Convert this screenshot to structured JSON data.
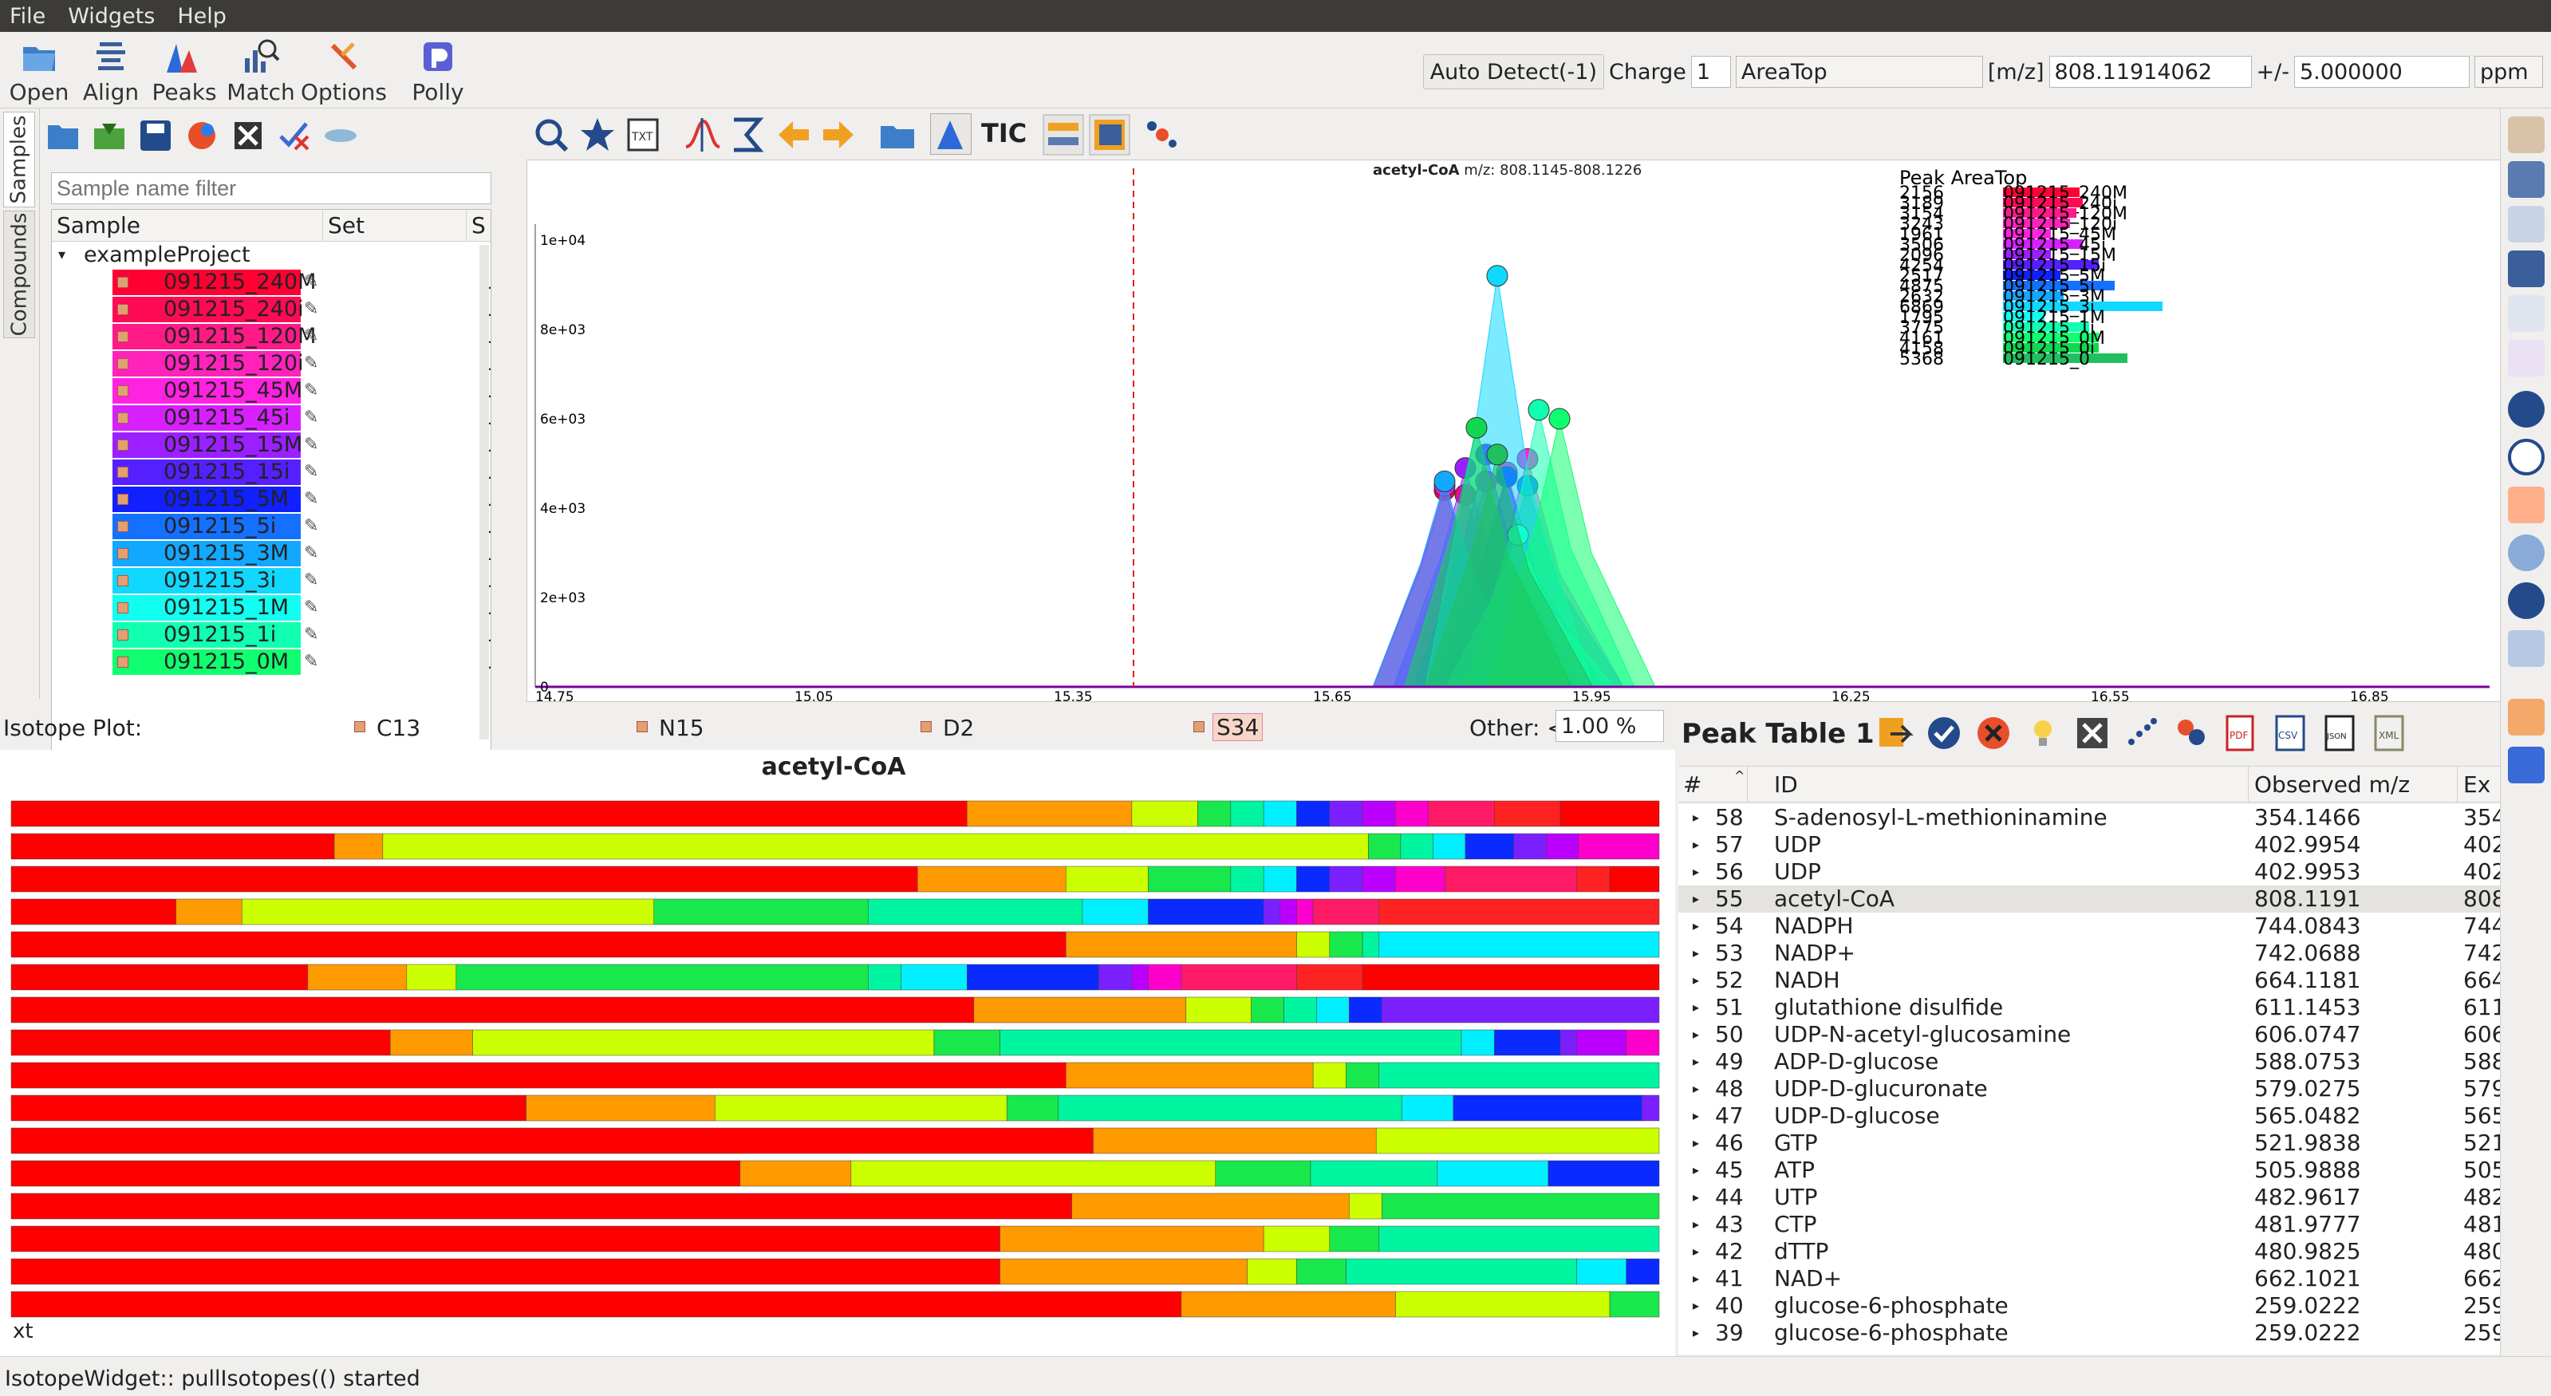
{
  "menu": [
    "File",
    "Widgets",
    "Help"
  ],
  "toolbar": {
    "buttons": [
      {
        "label": "Open",
        "icon": "folder-open-icon"
      },
      {
        "label": "Align",
        "icon": "align-icon"
      },
      {
        "label": "Peaks",
        "icon": "peaks-icon"
      },
      {
        "label": "Match",
        "icon": "match-icon"
      },
      {
        "label": "Options",
        "icon": "options-icon"
      },
      {
        "label": "Polly",
        "icon": "polly-icon"
      }
    ],
    "auto_detect": "Auto Detect(-1)",
    "charge_label": "Charge",
    "charge_value": "1",
    "quant_type": "AreaTop",
    "mz_label": "[m/z]",
    "mz_value": "808.11914062",
    "tol_label": "+/-",
    "tol_value": "5.000000",
    "tol_unit": "ppm"
  },
  "left_tabs": [
    "Samples",
    "Compounds"
  ],
  "samples": {
    "filter_placeholder": "Sample name filter",
    "col_sample": "Sample",
    "col_set": "Set",
    "col_s": "S",
    "project": "exampleProject",
    "items": [
      {
        "name": "091215_240M",
        "color": "#ff0033",
        "value": "1."
      },
      {
        "name": "091215_240i",
        "color": "#ff0a55",
        "value": "1."
      },
      {
        "name": "091215_120M",
        "color": "#ff1a88",
        "value": "1."
      },
      {
        "name": "091215_120i",
        "color": "#ff22bb",
        "value": "1."
      },
      {
        "name": "091215_45M",
        "color": "#ff22e0",
        "value": "1."
      },
      {
        "name": "091215_45i",
        "color": "#d820ff",
        "value": "1."
      },
      {
        "name": "091215_15M",
        "color": "#9a20ff",
        "value": "1."
      },
      {
        "name": "091215_15i",
        "color": "#5520ff",
        "value": "1."
      },
      {
        "name": "091215_5M",
        "color": "#1020ff",
        "value": "1."
      },
      {
        "name": "091215_5i",
        "color": "#1470ff",
        "value": "1."
      },
      {
        "name": "091215_3M",
        "color": "#12a8ff",
        "value": "1."
      },
      {
        "name": "091215_3i",
        "color": "#10d8ff",
        "value": "1."
      },
      {
        "name": "091215_1M",
        "color": "#10fff0",
        "value": "1."
      },
      {
        "name": "091215_1i",
        "color": "#10ffb0",
        "value": "1."
      },
      {
        "name": "091215_0M",
        "color": "#10ff70",
        "value": "1."
      }
    ]
  },
  "eic": {
    "tic_label": "TIC",
    "title_compound": "acetyl-CoA",
    "title_range": "m/z: 808.1145-808.1226",
    "legend_title": "Peak AreaTop",
    "y_ticks": [
      "1e+04",
      "8e+03",
      "6e+03",
      "4e+03",
      "2e+03",
      "0"
    ],
    "x_ticks": [
      "14.75",
      "15.05",
      "15.35",
      "15.65",
      "15.95",
      "16.25",
      "16.55",
      "16.85"
    ],
    "legend": [
      {
        "val": "2156",
        "name": "091215_240M",
        "color": "#ff0033",
        "bar": 0.48
      },
      {
        "val": "3189",
        "name": "091215_240i",
        "color": "#ff0a55",
        "bar": 0.5
      },
      {
        "val": "3154",
        "name": "091215_120M",
        "color": "#ff1a88",
        "bar": 0.46
      },
      {
        "val": "3243",
        "name": "091215_120i",
        "color": "#ff22bb",
        "bar": 0.42
      },
      {
        "val": "1961",
        "name": "091215_45M",
        "color": "#ff22e0",
        "bar": 0.3
      },
      {
        "val": "3506",
        "name": "091215_45i",
        "color": "#d820ff",
        "bar": 0.5
      },
      {
        "val": "2096",
        "name": "091215_15M",
        "color": "#9a20ff",
        "bar": 0.3
      },
      {
        "val": "4254",
        "name": "091215_15i",
        "color": "#5520ff",
        "bar": 0.6
      },
      {
        "val": "2517",
        "name": "091215_5M",
        "color": "#1020ff",
        "bar": 0.36
      },
      {
        "val": "4875",
        "name": "091215_5i",
        "color": "#1470ff",
        "bar": 0.7
      },
      {
        "val": "2632",
        "name": "091215_3M",
        "color": "#12a8ff",
        "bar": 0.38
      },
      {
        "val": "6869",
        "name": "091215_3i",
        "color": "#10d8ff",
        "bar": 1.0
      },
      {
        "val": "1795",
        "name": "091215_1M",
        "color": "#10fff0",
        "bar": 0.26
      },
      {
        "val": "3775",
        "name": "091215_1i",
        "color": "#10ffb0",
        "bar": 0.54
      },
      {
        "val": "4161",
        "name": "091215_0M",
        "color": "#10ff70",
        "bar": 0.6
      },
      {
        "val": "4158",
        "name": "091215_0i",
        "color": "#10d850",
        "bar": 0.6
      },
      {
        "val": "5368",
        "name": "091215_0",
        "color": "#20c060",
        "bar": 0.78
      }
    ]
  },
  "isotope": {
    "label": "Isotope Plot:",
    "c13": "C13",
    "n15": "N15",
    "d2": "D2",
    "s34": "S34",
    "other_label": "Other: <",
    "other_value": "1.00 %",
    "title": "acetyl-CoA",
    "corner_text": "xt",
    "palette": [
      "#ff0000",
      "#ff9a00",
      "#ccff00",
      "#18e84c",
      "#00f5a0",
      "#00f0ff",
      "#0a2aff",
      "#7a20ff",
      "#bb00ff",
      "#ff00cc",
      "#ff1a66",
      "#ff2222"
    ],
    "rows": [
      [
        0.58,
        0.1,
        0.04,
        0.02,
        0.02,
        0.02,
        0.02,
        0.02,
        0.02,
        0.02,
        0.04,
        0.04,
        0.06
      ],
      [
        0.2,
        0.03,
        0.61,
        0.02,
        0.02,
        0.02,
        0.03,
        0.02,
        0.02,
        0.05
      ],
      [
        0.55,
        0.09,
        0.05,
        0.05,
        0.02,
        0.02,
        0.02,
        0.02,
        0.02,
        0.03,
        0.08,
        0.02,
        0.03
      ],
      [
        0.1,
        0.04,
        0.25,
        0.13,
        0.13,
        0.04,
        0.07,
        0.01,
        0.01,
        0.01,
        0.04,
        0.17
      ],
      [
        0.64,
        0.14,
        0.02,
        0.02,
        0.01,
        0.17
      ],
      [
        0.18,
        0.06,
        0.03,
        0.25,
        0.02,
        0.04,
        0.08,
        0.02,
        0.01,
        0.02,
        0.07,
        0.04,
        0.18
      ],
      [
        0.59,
        0.13,
        0.04,
        0.02,
        0.02,
        0.02,
        0.02,
        0.17
      ],
      [
        0.23,
        0.05,
        0.28,
        0.04,
        0.28,
        0.02,
        0.04,
        0.01,
        0.03,
        0.02
      ],
      [
        0.64,
        0.15,
        0.02,
        0.02,
        0.17
      ],
      [
        0.3,
        0.11,
        0.17,
        0.03,
        0.2,
        0.03,
        0.11,
        0.01
      ],
      [
        0.65,
        0.17,
        0.17
      ],
      [
        0.46,
        0.07,
        0.23,
        0.06,
        0.08,
        0.07,
        0.07
      ],
      [
        0.65,
        0.17,
        0.02,
        0.17
      ],
      [
        0.6,
        0.16,
        0.04,
        0.03,
        0.17
      ],
      [
        0.6,
        0.15,
        0.03,
        0.03,
        0.14,
        0.03,
        0.02
      ],
      [
        0.71,
        0.13,
        0.13,
        0.03
      ]
    ]
  },
  "peaktable": {
    "title": "Peak Table 1",
    "col_num": "#",
    "col_id": "ID",
    "col_mz": "Observed m/z",
    "col_exp": "Ex",
    "rows": [
      {
        "n": "58",
        "id": "S-adenosyl-L-methioninamine",
        "mz": "354.1466",
        "ex": "354"
      },
      {
        "n": "57",
        "id": "UDP",
        "mz": "402.9954",
        "ex": "402"
      },
      {
        "n": "56",
        "id": "UDP",
        "mz": "402.9953",
        "ex": "402"
      },
      {
        "n": "55",
        "id": "acetyl-CoA",
        "mz": "808.1191",
        "ex": "808"
      },
      {
        "n": "54",
        "id": "NADPH",
        "mz": "744.0843",
        "ex": "744"
      },
      {
        "n": "53",
        "id": "NADP+",
        "mz": "742.0688",
        "ex": "742"
      },
      {
        "n": "52",
        "id": "NADH",
        "mz": "664.1181",
        "ex": "664"
      },
      {
        "n": "51",
        "id": "glutathione disulfide",
        "mz": "611.1453",
        "ex": "611"
      },
      {
        "n": "50",
        "id": "UDP-N-acetyl-glucosamine",
        "mz": "606.0747",
        "ex": "606"
      },
      {
        "n": "49",
        "id": "ADP-D-glucose",
        "mz": "588.0753",
        "ex": "588"
      },
      {
        "n": "48",
        "id": "UDP-D-glucuronate",
        "mz": "579.0275",
        "ex": "579"
      },
      {
        "n": "47",
        "id": "UDP-D-glucose",
        "mz": "565.0482",
        "ex": "565"
      },
      {
        "n": "46",
        "id": "GTP",
        "mz": "521.9838",
        "ex": "521"
      },
      {
        "n": "45",
        "id": "ATP",
        "mz": "505.9888",
        "ex": "505"
      },
      {
        "n": "44",
        "id": "UTP",
        "mz": "482.9617",
        "ex": "482"
      },
      {
        "n": "43",
        "id": "CTP",
        "mz": "481.9777",
        "ex": "481"
      },
      {
        "n": "42",
        "id": "dTTP",
        "mz": "480.9825",
        "ex": "480"
      },
      {
        "n": "41",
        "id": "NAD+",
        "mz": "662.1021",
        "ex": "662"
      },
      {
        "n": "40",
        "id": "glucose-6-phosphate",
        "mz": "259.0222",
        "ex": "259"
      },
      {
        "n": "39",
        "id": "glucose-6-phosphate",
        "mz": "259.0222",
        "ex": "259"
      }
    ]
  },
  "status": "IsotopeWidget:: pullIsotopes(() started"
}
